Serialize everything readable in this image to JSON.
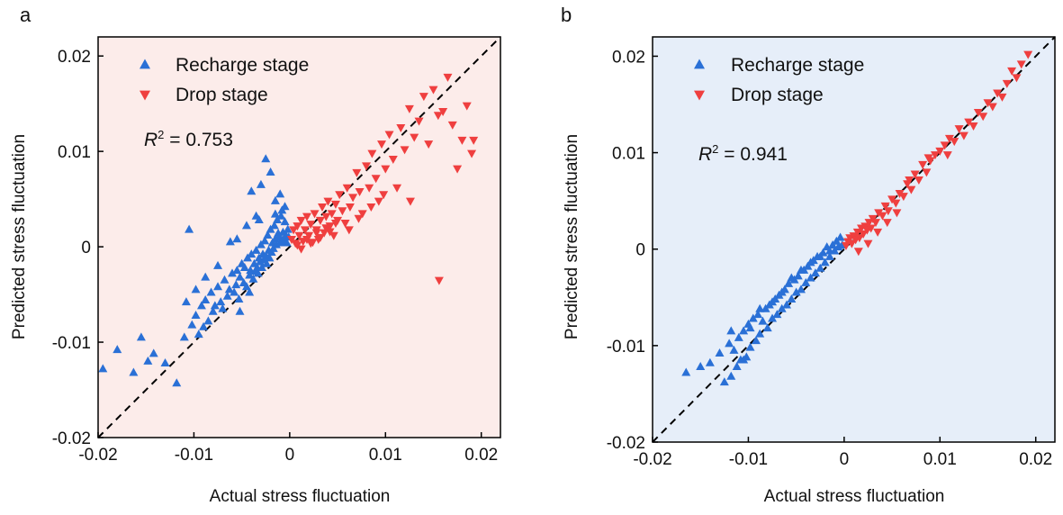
{
  "figure": {
    "panels": [
      {
        "letter": "a",
        "bg_color": "#fcecea",
        "xlabel": "Actual stress fluctuation",
        "ylabel": "Predicted stress fluctuation",
        "r2_prefix": "R",
        "r2_sup": "2",
        "r2_value": " = 0.753",
        "legend": [
          {
            "label": "Recharge stage",
            "marker": "triangle-up",
            "color": "#2a70d6"
          },
          {
            "label": "Drop stage",
            "marker": "triangle-down",
            "color": "#ef3f3f"
          }
        ]
      },
      {
        "letter": "b",
        "bg_color": "#e6eef9",
        "xlabel": "Actual stress fluctuation",
        "ylabel": "Predicted stress fluctuation",
        "r2_prefix": "R",
        "r2_sup": "2",
        "r2_value": " = 0.941",
        "legend": [
          {
            "label": "Recharge stage",
            "marker": "triangle-up",
            "color": "#2a70d6"
          },
          {
            "label": "Drop stage",
            "marker": "triangle-down",
            "color": "#ef3f3f"
          }
        ]
      }
    ]
  },
  "chart_data": [
    {
      "type": "scatter",
      "panel": "a",
      "title": "",
      "xlabel": "Actual stress fluctuation",
      "ylabel": "Predicted stress fluctuation",
      "xlim": [
        -0.02,
        0.022
      ],
      "ylim": [
        -0.02,
        0.022
      ],
      "x_ticks": [
        -0.02,
        -0.01,
        0,
        0.01,
        0.02
      ],
      "x_tick_labels": [
        "-0.02",
        "-0.01",
        "0",
        "0.01",
        "0.02"
      ],
      "y_ticks": [
        -0.02,
        -0.01,
        0,
        0.01,
        0.02
      ],
      "y_tick_labels": [
        "-0.02",
        "-0.01",
        "0",
        "0.01",
        "0.02"
      ],
      "grid": false,
      "legend_position": "top-left",
      "reference_line": {
        "style": "dashed",
        "color": "#000000",
        "x": [
          -0.02,
          0.022
        ],
        "y": [
          -0.02,
          0.022
        ]
      },
      "annotation": "R2 = 0.753",
      "r2": 0.753,
      "series": [
        {
          "name": "Recharge stage",
          "marker": "triangle-up",
          "color": "#2a70d6",
          "x": [
            -0.0195,
            -0.018,
            -0.0163,
            -0.0155,
            -0.0148,
            -0.0142,
            -0.013,
            -0.0118,
            -0.011,
            -0.0105,
            -0.0102,
            -0.0098,
            -0.0095,
            -0.0092,
            -0.009,
            -0.0088,
            -0.0085,
            -0.0082,
            -0.008,
            -0.0078,
            -0.0075,
            -0.0072,
            -0.007,
            -0.0068,
            -0.0065,
            -0.0063,
            -0.006,
            -0.0058,
            -0.0056,
            -0.0055,
            -0.0053,
            -0.0052,
            -0.005,
            -0.0048,
            -0.0047,
            -0.0045,
            -0.0044,
            -0.0042,
            -0.0041,
            -0.004,
            -0.0038,
            -0.0037,
            -0.0036,
            -0.0035,
            -0.0034,
            -0.0033,
            -0.0032,
            -0.0031,
            -0.003,
            -0.0029,
            -0.0028,
            -0.0027,
            -0.0026,
            -0.0025,
            -0.0024,
            -0.0023,
            -0.0022,
            -0.0021,
            -0.002,
            -0.0019,
            -0.0018,
            -0.0017,
            -0.0016,
            -0.0015,
            -0.0014,
            -0.0013,
            -0.0012,
            -0.0011,
            -0.001,
            -0.0009,
            -0.0008,
            -0.0007,
            -0.0006,
            -0.0005,
            -0.0004,
            -0.0003,
            -0.0002,
            -0.0001,
            -0.0025,
            -0.0035,
            -0.004,
            -0.0045,
            -0.003,
            -0.002,
            -0.0015,
            -0.001,
            -0.0055,
            -0.0062,
            -0.0075,
            -0.0088,
            -0.0098,
            -0.0108,
            -0.0032,
            -0.0042,
            -0.0052,
            -0.0015,
            -0.0008,
            -0.0005
          ],
          "y": [
            -0.0128,
            -0.0108,
            -0.0132,
            -0.0095,
            -0.012,
            -0.0112,
            -0.0122,
            -0.0143,
            -0.0095,
            0.0018,
            -0.0082,
            -0.0072,
            -0.0092,
            -0.0062,
            -0.0084,
            -0.0056,
            -0.0078,
            -0.0048,
            -0.0068,
            -0.0062,
            -0.0042,
            -0.0058,
            -0.0065,
            -0.0035,
            -0.0052,
            -0.0045,
            -0.0028,
            -0.0048,
            -0.004,
            -0.0025,
            -0.0055,
            -0.0032,
            -0.0018,
            -0.0038,
            -0.0022,
            -0.0042,
            -0.0012,
            -0.003,
            -0.0025,
            -0.0008,
            -0.0034,
            -0.0018,
            -0.0026,
            -0.0004,
            -0.0022,
            -0.0028,
            -0.0012,
            -0.0016,
            0.0002,
            -0.0022,
            -0.0008,
            -0.0014,
            0.0006,
            -0.001,
            -0.0018,
            0.0012,
            -0.0004,
            -0.0012,
            0.0018,
            -0.0006,
            0.0004,
            -0.0002,
            0.0022,
            0.0008,
            0.0002,
            0.0028,
            0.0014,
            0.001,
            0.0004,
            0.0032,
            0.0006,
            0.0015,
            0.0008,
            0.0042,
            0.0012,
            0.0004,
            0.0018,
            0.001,
            0.0092,
            0.0032,
            0.0058,
            0.0022,
            0.0065,
            0.0078,
            0.0048,
            0.0055,
            0.0008,
            0.0005,
            -0.002,
            -0.0032,
            -0.0045,
            -0.0058,
            0.0028,
            -0.0048,
            -0.0068,
            0.0034,
            0.0038,
            0.0026
          ]
        },
        {
          "name": "Drop stage",
          "marker": "triangle-down",
          "color": "#ef3f3f",
          "x": [
            0.0002,
            0.0004,
            0.0006,
            0.0008,
            0.001,
            0.0012,
            0.0014,
            0.0016,
            0.0018,
            0.002,
            0.0022,
            0.0024,
            0.0026,
            0.0028,
            0.003,
            0.0032,
            0.0034,
            0.0036,
            0.0038,
            0.004,
            0.0042,
            0.0044,
            0.0046,
            0.0048,
            0.005,
            0.0052,
            0.0055,
            0.0058,
            0.006,
            0.0063,
            0.0066,
            0.007,
            0.0073,
            0.0076,
            0.008,
            0.0083,
            0.0086,
            0.009,
            0.0093,
            0.0096,
            0.01,
            0.0104,
            0.0108,
            0.0112,
            0.0116,
            0.012,
            0.0125,
            0.013,
            0.0135,
            0.014,
            0.0145,
            0.015,
            0.0155,
            0.016,
            0.0165,
            0.017,
            0.0175,
            0.018,
            0.0185,
            0.019,
            0.0192,
            0.0126,
            0.0156,
            0.0008,
            0.0018,
            0.0028,
            0.0038,
            0.0048,
            0.0012,
            0.0022,
            0.0032,
            0.0042,
            0.0062,
            0.0072,
            0.0085,
            0.0098
          ],
          "y": [
            0.0008,
            0.0018,
            0.0004,
            0.0022,
            0.0012,
            0.0028,
            0.0006,
            0.0018,
            0.0032,
            0.0012,
            0.0024,
            0.0005,
            0.0035,
            0.0018,
            0.0008,
            0.0028,
            0.0042,
            0.0015,
            0.0032,
            0.0048,
            0.0022,
            0.0035,
            0.0012,
            0.0045,
            0.0028,
            0.0055,
            0.0038,
            0.0025,
            0.0062,
            0.0042,
            0.0052,
            0.0078,
            0.0058,
            0.0035,
            0.0085,
            0.0062,
            0.0098,
            0.0072,
            0.0048,
            0.0108,
            0.0082,
            0.0118,
            0.0092,
            0.0062,
            0.0125,
            0.0102,
            0.0145,
            0.0115,
            0.0132,
            0.0158,
            0.0108,
            0.0165,
            0.0138,
            0.0142,
            0.0178,
            0.0128,
            0.0082,
            0.0112,
            0.0148,
            0.0098,
            0.0112,
            0.0048,
            -0.0035,
            0.0002,
            0.0008,
            0.0015,
            0.002,
            0.0025,
            -0.0002,
            0.0004,
            0.001,
            0.0016,
            0.0018,
            0.003,
            0.0042,
            0.0055
          ]
        }
      ]
    },
    {
      "type": "scatter",
      "panel": "b",
      "title": "",
      "xlabel": "Actual stress fluctuation",
      "ylabel": "Predicted stress fluctuation",
      "xlim": [
        -0.02,
        0.022
      ],
      "ylim": [
        -0.02,
        0.022
      ],
      "x_ticks": [
        -0.02,
        -0.01,
        0,
        0.01,
        0.02
      ],
      "x_tick_labels": [
        "-0.02",
        "-0.01",
        "0",
        "0.01",
        "0.02"
      ],
      "y_ticks": [
        -0.02,
        -0.01,
        0,
        0.01,
        0.02
      ],
      "y_tick_labels": [
        "-0.02",
        "-0.01",
        "0",
        "0.01",
        "0.02"
      ],
      "grid": false,
      "legend_position": "top-left",
      "reference_line": {
        "style": "dashed",
        "color": "#000000",
        "x": [
          -0.02,
          0.022
        ],
        "y": [
          -0.02,
          0.022
        ]
      },
      "annotation": "R2 = 0.941",
      "r2": 0.941,
      "series": [
        {
          "name": "Recharge stage",
          "marker": "triangle-up",
          "color": "#2a70d6",
          "x": [
            -0.0165,
            -0.015,
            -0.014,
            -0.013,
            -0.0125,
            -0.012,
            -0.0118,
            -0.0115,
            -0.0112,
            -0.011,
            -0.0108,
            -0.0105,
            -0.0102,
            -0.01,
            -0.0098,
            -0.0095,
            -0.0092,
            -0.009,
            -0.0088,
            -0.0085,
            -0.0082,
            -0.008,
            -0.0078,
            -0.0075,
            -0.0072,
            -0.007,
            -0.0068,
            -0.0065,
            -0.0062,
            -0.006,
            -0.0058,
            -0.0055,
            -0.0052,
            -0.005,
            -0.0048,
            -0.0045,
            -0.0042,
            -0.004,
            -0.0038,
            -0.0035,
            -0.0032,
            -0.003,
            -0.0028,
            -0.0025,
            -0.0022,
            -0.002,
            -0.0018,
            -0.0015,
            -0.0012,
            -0.001,
            -0.0008,
            -0.0006,
            -0.0004,
            -0.0002,
            -0.0098,
            -0.0088,
            -0.0075,
            -0.0065,
            -0.0055,
            -0.0045,
            -0.0035,
            -0.0025,
            -0.0015,
            -0.0118,
            -0.0105
          ],
          "y": [
            -0.0128,
            -0.0122,
            -0.0118,
            -0.0108,
            -0.0138,
            -0.0098,
            -0.0132,
            -0.0105,
            -0.0122,
            -0.0092,
            -0.0115,
            -0.0085,
            -0.0112,
            -0.0078,
            -0.0102,
            -0.0072,
            -0.0095,
            -0.0068,
            -0.0088,
            -0.0075,
            -0.0062,
            -0.0082,
            -0.0058,
            -0.0072,
            -0.0052,
            -0.0068,
            -0.0048,
            -0.0062,
            -0.0042,
            -0.0058,
            -0.0036,
            -0.0052,
            -0.0032,
            -0.0045,
            -0.0028,
            -0.0042,
            -0.0022,
            -0.0035,
            -0.0018,
            -0.003,
            -0.0012,
            -0.0025,
            -0.0008,
            -0.002,
            -0.0004,
            -0.0014,
            0.0002,
            -0.0008,
            0.0004,
            -0.0002,
            0.0008,
            0.0002,
            0.0012,
            0.0004,
            -0.0082,
            -0.0062,
            -0.0055,
            -0.0045,
            -0.003,
            -0.0022,
            -0.0014,
            -0.0008,
            -0.0002,
            -0.0085,
            -0.0115
          ]
        },
        {
          "name": "Drop stage",
          "marker": "triangle-down",
          "color": "#ef3f3f",
          "x": [
            0.0002,
            0.0004,
            0.0006,
            0.0008,
            0.001,
            0.0012,
            0.0014,
            0.0016,
            0.0018,
            0.002,
            0.0022,
            0.0024,
            0.0026,
            0.0028,
            0.003,
            0.0033,
            0.0036,
            0.004,
            0.0043,
            0.0046,
            0.005,
            0.0054,
            0.0058,
            0.0062,
            0.0066,
            0.007,
            0.0074,
            0.0078,
            0.0082,
            0.0086,
            0.009,
            0.0095,
            0.01,
            0.0105,
            0.011,
            0.0115,
            0.012,
            0.0125,
            0.013,
            0.0135,
            0.014,
            0.0145,
            0.015,
            0.0155,
            0.016,
            0.0165,
            0.017,
            0.0175,
            0.018,
            0.0185,
            0.0192,
            0.0015,
            0.0025,
            0.0035,
            0.0045,
            0.0055,
            0.0068,
            0.0088,
            0.0108
          ],
          "y": [
            0.0004,
            0.0008,
            0.0012,
            0.0006,
            0.0014,
            0.001,
            0.0018,
            0.0012,
            0.0022,
            0.0016,
            0.0024,
            0.002,
            0.0028,
            0.0022,
            0.0032,
            0.0028,
            0.0038,
            0.0035,
            0.0045,
            0.004,
            0.0052,
            0.0048,
            0.0058,
            0.0055,
            0.0068,
            0.0062,
            0.0078,
            0.0072,
            0.0088,
            0.008,
            0.0092,
            0.0098,
            0.0102,
            0.0108,
            0.0115,
            0.0112,
            0.0125,
            0.0118,
            0.0132,
            0.0128,
            0.0142,
            0.0138,
            0.0152,
            0.0148,
            0.0162,
            0.0158,
            0.0172,
            0.0185,
            0.0178,
            0.0192,
            0.0202,
            -0.0002,
            0.0006,
            0.0018,
            0.0028,
            0.0038,
            0.0072,
            0.0095,
            0.0098
          ]
        }
      ]
    }
  ]
}
